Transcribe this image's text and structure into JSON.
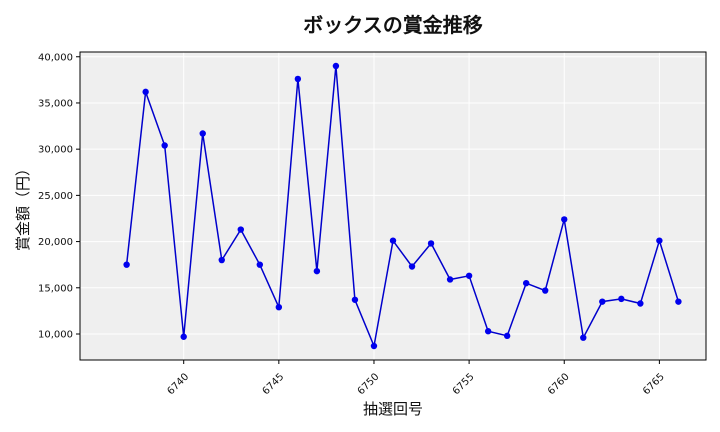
{
  "chart_data": {
    "type": "line",
    "title": "ボックスの賞金推移",
    "xlabel": "抽選回号",
    "ylabel": "賞金額（円）",
    "x": [
      6737,
      6738,
      6739,
      6740,
      6741,
      6742,
      6743,
      6744,
      6745,
      6746,
      6747,
      6748,
      6749,
      6750,
      6751,
      6752,
      6753,
      6754,
      6755,
      6756,
      6757,
      6758,
      6759,
      6760,
      6761,
      6762,
      6763,
      6764,
      6765,
      6766
    ],
    "y": [
      17500,
      36200,
      30400,
      9700,
      31700,
      18000,
      21300,
      17500,
      12900,
      37600,
      16800,
      39000,
      13700,
      8700,
      20100,
      17300,
      19800,
      15900,
      16300,
      10300,
      9800,
      15500,
      14700,
      22400,
      9600,
      13500,
      13800,
      13300,
      20100,
      13500
    ],
    "xticks": [
      6740,
      6745,
      6750,
      6755,
      6760,
      6765
    ],
    "xtick_labels": [
      "6740",
      "6745",
      "6750",
      "6755",
      "6760",
      "6765"
    ],
    "yticks": [
      10000,
      15000,
      20000,
      25000,
      30000,
      35000,
      40000
    ],
    "ytick_labels": [
      "10,000",
      "15,000",
      "20,000",
      "25,000",
      "30,000",
      "35,000",
      "40,000"
    ],
    "xlim": [
      6734.55,
      6767.45
    ],
    "ylim": [
      7185,
      40515
    ],
    "grid": true,
    "colors": {
      "line": "#0000cc",
      "marker": "#0000ee",
      "background": "#efefef",
      "grid": "#ffffff"
    }
  }
}
